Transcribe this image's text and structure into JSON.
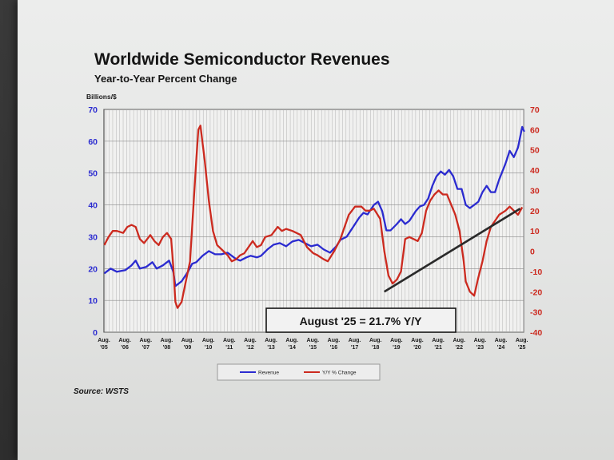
{
  "chart_data": {
    "type": "line",
    "title": "Worldwide Semiconductor Revenues",
    "subtitle": "Year-to-Year Percent Change",
    "ylabel_left": "Billions/$",
    "ylim_left": [
      0,
      70
    ],
    "yticks_left": [
      "0",
      "10",
      "20",
      "30",
      "40",
      "50",
      "60",
      "70"
    ],
    "ylim_right": [
      -40,
      70
    ],
    "yticks_right": [
      "-40",
      "-30",
      "-20",
      "-10",
      "0",
      "10",
      "20",
      "30",
      "40",
      "50",
      "60",
      "70"
    ],
    "x_range": [
      2005.58,
      2025.67
    ],
    "xticks": [
      {
        "top": "Aug.",
        "bottom": "'05"
      },
      {
        "top": "Aug.",
        "bottom": "'06"
      },
      {
        "top": "Aug.",
        "bottom": "'07"
      },
      {
        "top": "Aug.",
        "bottom": "'08"
      },
      {
        "top": "Aug.",
        "bottom": "'09"
      },
      {
        "top": "Aug.",
        "bottom": "'10"
      },
      {
        "top": "Aug.",
        "bottom": "'11"
      },
      {
        "top": "Aug.",
        "bottom": "'12"
      },
      {
        "top": "Aug.",
        "bottom": "'13"
      },
      {
        "top": "Aug.",
        "bottom": "'14"
      },
      {
        "top": "Aug.",
        "bottom": "'15"
      },
      {
        "top": "Aug.",
        "bottom": "'16"
      },
      {
        "top": "Aug.",
        "bottom": "'17"
      },
      {
        "top": "Aug.",
        "bottom": "'18"
      },
      {
        "top": "Aug.",
        "bottom": "'19"
      },
      {
        "top": "Aug.",
        "bottom": "'20"
      },
      {
        "top": "Aug.",
        "bottom": "'21"
      },
      {
        "top": "Aug.",
        "bottom": "'22"
      },
      {
        "top": "Aug.",
        "bottom": "'23"
      },
      {
        "top": "Aug.",
        "bottom": "'24"
      },
      {
        "top": "Aug.",
        "bottom": "'25"
      }
    ],
    "grid": true,
    "legend_position": "bottom-center",
    "annotation": "August '25 = 21.7% Y/Y",
    "source": "Source: WSTS",
    "series": [
      {
        "name": "Revenue",
        "axis": "left",
        "color": "#2b2bd0",
        "points": [
          [
            2005.6,
            18.5
          ],
          [
            2005.9,
            20
          ],
          [
            2006.2,
            19
          ],
          [
            2006.6,
            19.5
          ],
          [
            2006.9,
            21
          ],
          [
            2007.1,
            22.5
          ],
          [
            2007.3,
            20
          ],
          [
            2007.6,
            20.5
          ],
          [
            2007.9,
            22
          ],
          [
            2008.1,
            20
          ],
          [
            2008.4,
            21
          ],
          [
            2008.7,
            22.5
          ],
          [
            2008.9,
            19
          ],
          [
            2009.0,
            14.5
          ],
          [
            2009.3,
            16
          ],
          [
            2009.6,
            19
          ],
          [
            2009.8,
            21.5
          ],
          [
            2010.0,
            22
          ],
          [
            2010.3,
            24
          ],
          [
            2010.6,
            25.5
          ],
          [
            2010.9,
            24.5
          ],
          [
            2011.2,
            24.5
          ],
          [
            2011.5,
            25
          ],
          [
            2011.7,
            24
          ],
          [
            2011.9,
            23
          ],
          [
            2012.1,
            22.5
          ],
          [
            2012.4,
            23.5
          ],
          [
            2012.6,
            24
          ],
          [
            2012.9,
            23.5
          ],
          [
            2013.1,
            24
          ],
          [
            2013.4,
            26
          ],
          [
            2013.7,
            27.5
          ],
          [
            2014.0,
            28
          ],
          [
            2014.3,
            27
          ],
          [
            2014.6,
            28.5
          ],
          [
            2014.9,
            29
          ],
          [
            2015.2,
            28
          ],
          [
            2015.5,
            27
          ],
          [
            2015.8,
            27.5
          ],
          [
            2016.1,
            26
          ],
          [
            2016.4,
            25
          ],
          [
            2016.7,
            27
          ],
          [
            2016.9,
            29
          ],
          [
            2017.2,
            30
          ],
          [
            2017.5,
            33
          ],
          [
            2017.8,
            36
          ],
          [
            2018.0,
            37.5
          ],
          [
            2018.2,
            37
          ],
          [
            2018.5,
            40
          ],
          [
            2018.7,
            41
          ],
          [
            2018.9,
            38
          ],
          [
            2019.1,
            32
          ],
          [
            2019.3,
            32
          ],
          [
            2019.6,
            34
          ],
          [
            2019.8,
            35.5
          ],
          [
            2020.0,
            34
          ],
          [
            2020.2,
            35
          ],
          [
            2020.5,
            38
          ],
          [
            2020.7,
            39.5
          ],
          [
            2020.9,
            40
          ],
          [
            2021.1,
            42
          ],
          [
            2021.3,
            46
          ],
          [
            2021.5,
            49
          ],
          [
            2021.7,
            50.5
          ],
          [
            2021.9,
            49.5
          ],
          [
            2022.1,
            51
          ],
          [
            2022.3,
            49
          ],
          [
            2022.5,
            45
          ],
          [
            2022.7,
            45
          ],
          [
            2022.9,
            40
          ],
          [
            2023.1,
            39
          ],
          [
            2023.3,
            40
          ],
          [
            2023.5,
            41
          ],
          [
            2023.7,
            44
          ],
          [
            2023.9,
            46
          ],
          [
            2024.1,
            44
          ],
          [
            2024.3,
            44
          ],
          [
            2024.5,
            48
          ],
          [
            2024.8,
            53
          ],
          [
            2025.0,
            57
          ],
          [
            2025.2,
            55
          ],
          [
            2025.4,
            58
          ],
          [
            2025.6,
            64.5
          ],
          [
            2025.7,
            63
          ]
        ]
      },
      {
        "name": "Y/Y % Change",
        "axis": "right",
        "color": "#cc2a1f",
        "points": [
          [
            2005.6,
            3
          ],
          [
            2005.8,
            7
          ],
          [
            2006.0,
            10
          ],
          [
            2006.2,
            10
          ],
          [
            2006.5,
            9
          ],
          [
            2006.7,
            12
          ],
          [
            2006.9,
            13
          ],
          [
            2007.1,
            12
          ],
          [
            2007.3,
            6
          ],
          [
            2007.5,
            4
          ],
          [
            2007.8,
            8
          ],
          [
            2008.0,
            5
          ],
          [
            2008.2,
            3
          ],
          [
            2008.4,
            7
          ],
          [
            2008.6,
            9
          ],
          [
            2008.8,
            6
          ],
          [
            2008.9,
            -8
          ],
          [
            2009.0,
            -25
          ],
          [
            2009.1,
            -28
          ],
          [
            2009.3,
            -25
          ],
          [
            2009.5,
            -15
          ],
          [
            2009.7,
            -5
          ],
          [
            2009.85,
            20
          ],
          [
            2010.0,
            45
          ],
          [
            2010.1,
            60
          ],
          [
            2010.2,
            62
          ],
          [
            2010.4,
            45
          ],
          [
            2010.6,
            25
          ],
          [
            2010.8,
            10
          ],
          [
            2011.0,
            3
          ],
          [
            2011.3,
            0
          ],
          [
            2011.5,
            -2
          ],
          [
            2011.7,
            -5
          ],
          [
            2011.9,
            -4
          ],
          [
            2012.1,
            -2
          ],
          [
            2012.3,
            -1
          ],
          [
            2012.5,
            2
          ],
          [
            2012.7,
            5
          ],
          [
            2012.9,
            2
          ],
          [
            2013.1,
            3
          ],
          [
            2013.3,
            7
          ],
          [
            2013.6,
            8
          ],
          [
            2013.9,
            12
          ],
          [
            2014.1,
            10
          ],
          [
            2014.3,
            11
          ],
          [
            2014.6,
            10
          ],
          [
            2014.8,
            9
          ],
          [
            2015.0,
            8
          ],
          [
            2015.3,
            2
          ],
          [
            2015.6,
            -1
          ],
          [
            2015.8,
            -2
          ],
          [
            2016.1,
            -4
          ],
          [
            2016.3,
            -5
          ],
          [
            2016.6,
            0
          ],
          [
            2016.9,
            6
          ],
          [
            2017.1,
            12
          ],
          [
            2017.3,
            18
          ],
          [
            2017.6,
            22
          ],
          [
            2017.9,
            22
          ],
          [
            2018.1,
            20
          ],
          [
            2018.3,
            20
          ],
          [
            2018.5,
            21
          ],
          [
            2018.8,
            16
          ],
          [
            2019.0,
            0
          ],
          [
            2019.2,
            -12
          ],
          [
            2019.4,
            -16
          ],
          [
            2019.6,
            -14
          ],
          [
            2019.8,
            -10
          ],
          [
            2019.9,
            -2
          ],
          [
            2020.0,
            6
          ],
          [
            2020.2,
            7
          ],
          [
            2020.4,
            6
          ],
          [
            2020.6,
            5
          ],
          [
            2020.8,
            9
          ],
          [
            2021.0,
            20
          ],
          [
            2021.2,
            25
          ],
          [
            2021.4,
            28
          ],
          [
            2021.6,
            30
          ],
          [
            2021.8,
            28
          ],
          [
            2022.0,
            28
          ],
          [
            2022.2,
            23
          ],
          [
            2022.4,
            18
          ],
          [
            2022.6,
            10
          ],
          [
            2022.8,
            -5
          ],
          [
            2022.9,
            -15
          ],
          [
            2023.1,
            -20
          ],
          [
            2023.3,
            -22
          ],
          [
            2023.5,
            -13
          ],
          [
            2023.7,
            -5
          ],
          [
            2023.9,
            5
          ],
          [
            2024.1,
            12
          ],
          [
            2024.3,
            15
          ],
          [
            2024.5,
            18
          ],
          [
            2024.8,
            20
          ],
          [
            2025.0,
            22
          ],
          [
            2025.2,
            20
          ],
          [
            2025.4,
            18
          ],
          [
            2025.6,
            21.7
          ]
        ]
      }
    ],
    "trendline": {
      "axis": "right",
      "color": "#2a2a2a",
      "from": [
        2019.0,
        -20
      ],
      "to": [
        2025.5,
        21
      ]
    }
  }
}
